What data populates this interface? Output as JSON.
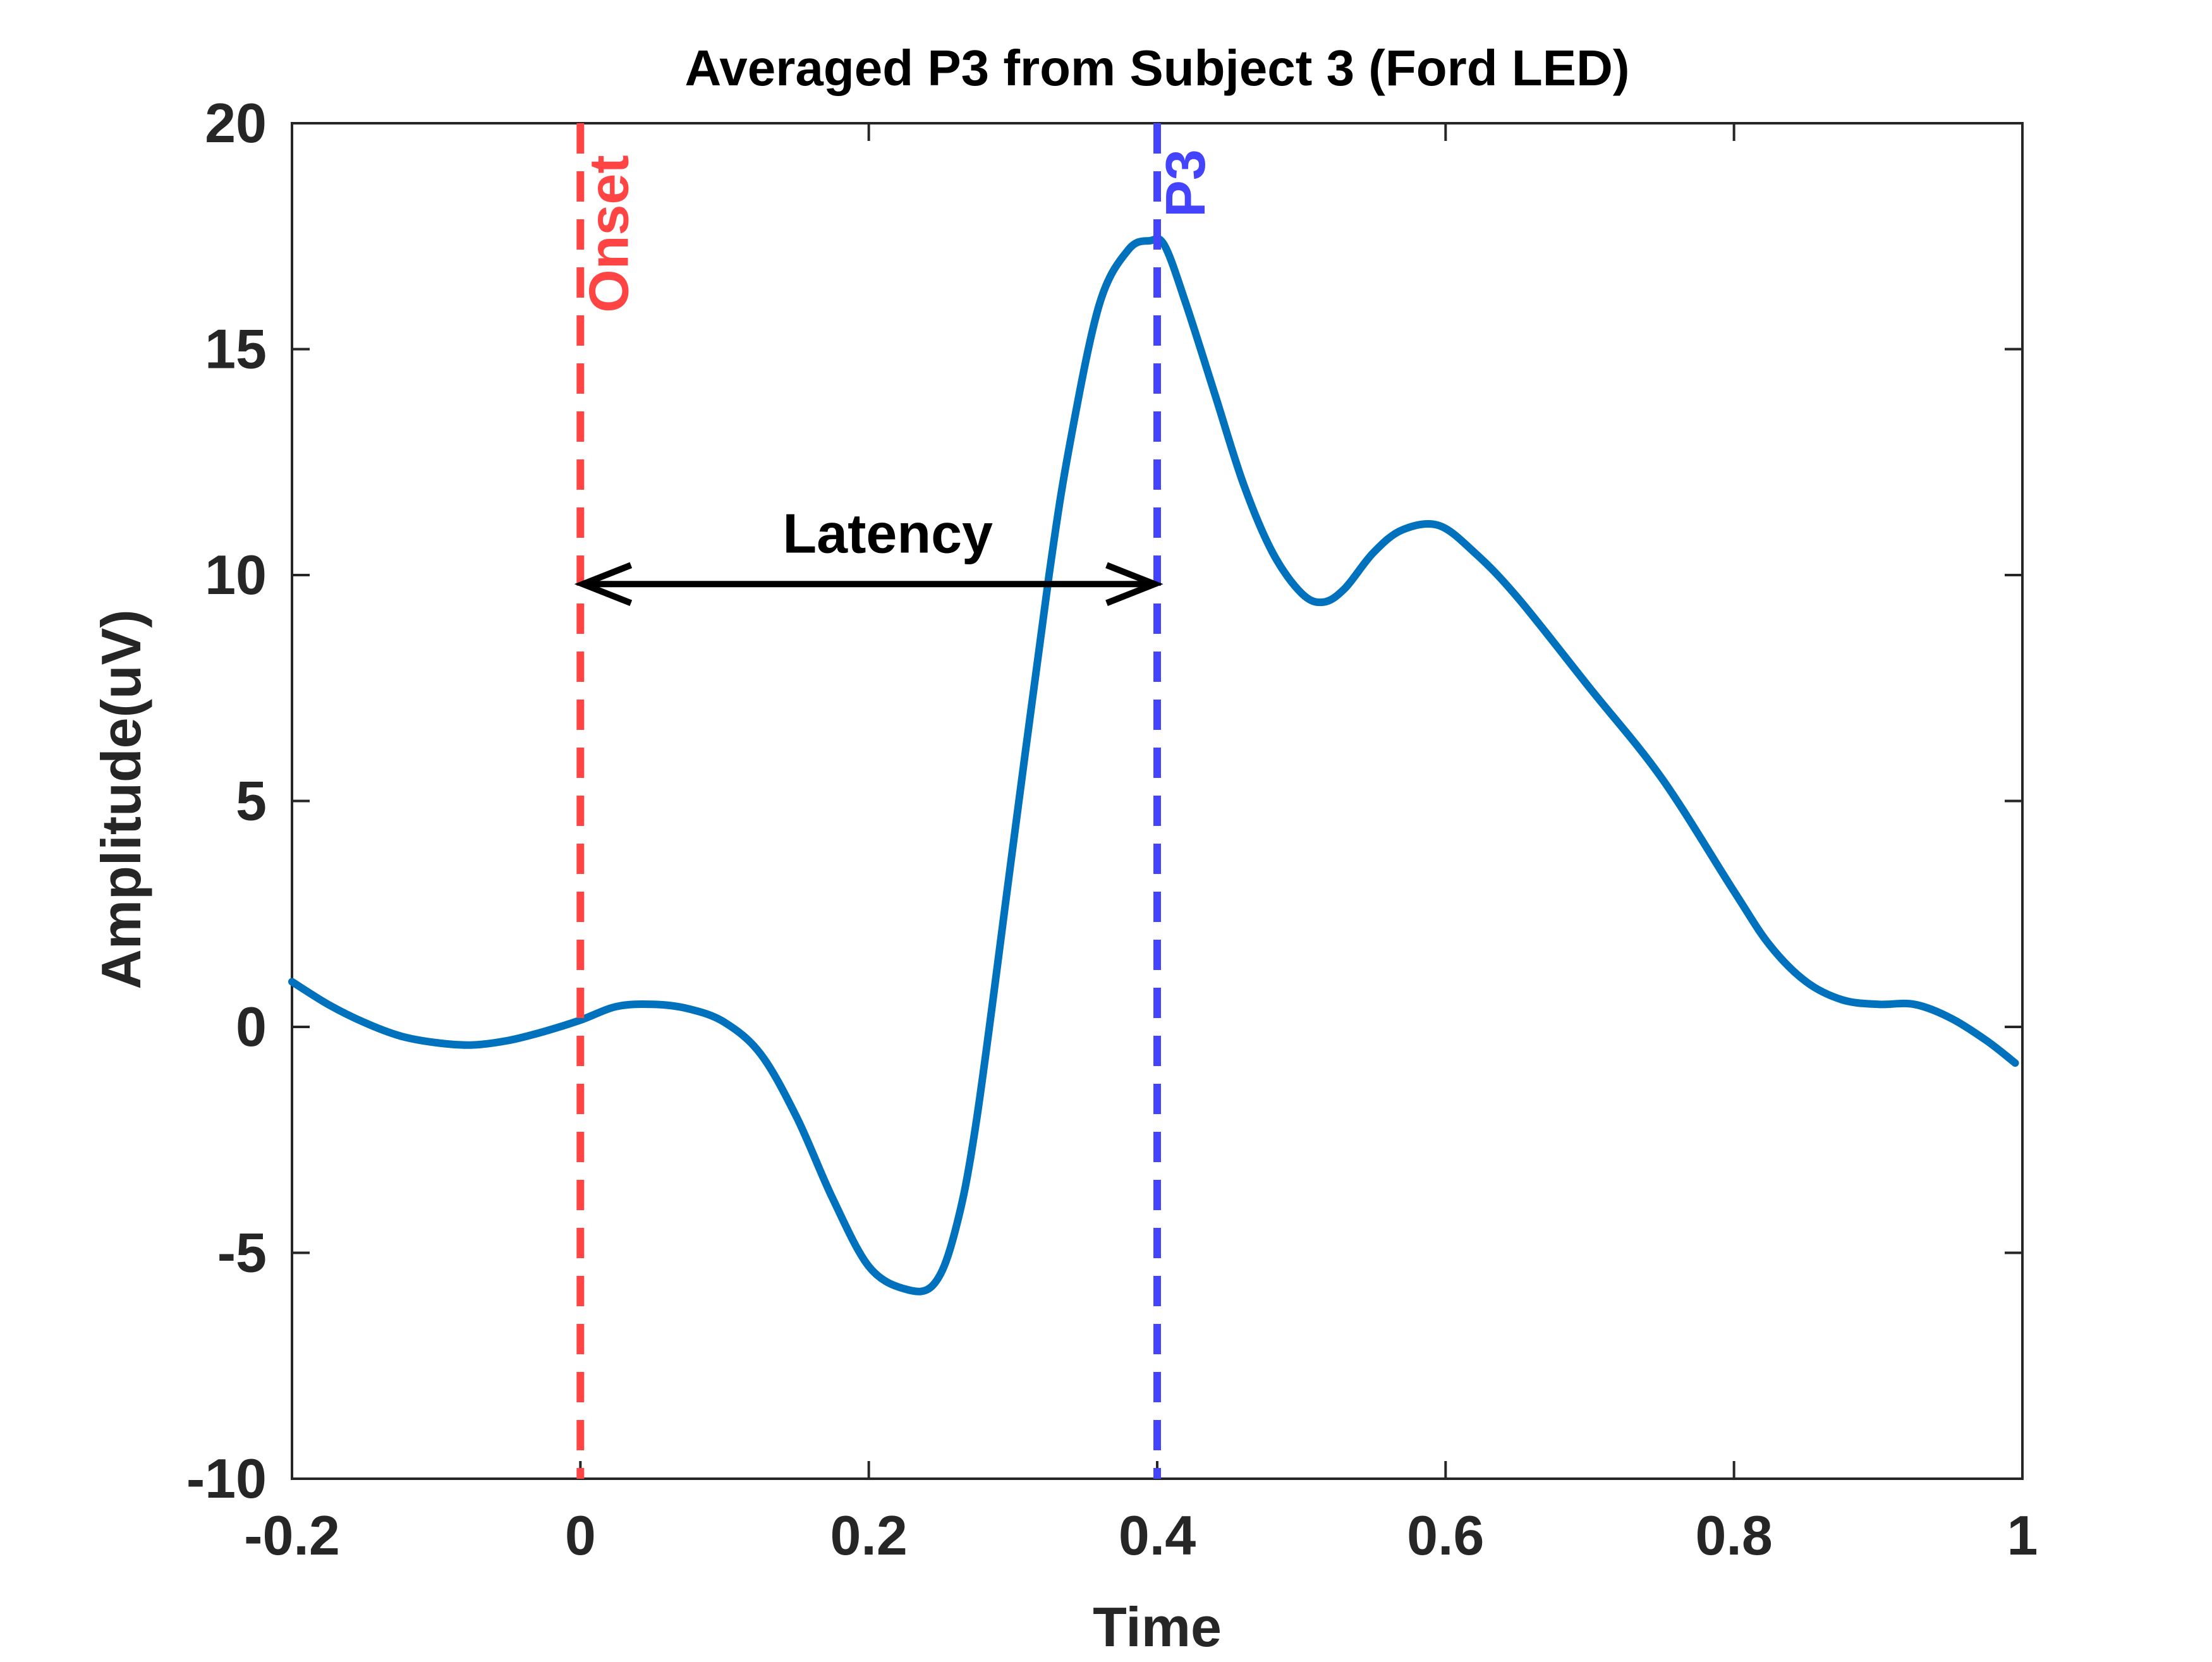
{
  "chart_data": {
    "type": "line",
    "title": "Averaged P3 from Subject 3 (Ford LED)",
    "xlabel": "Time",
    "ylabel": "Amplitude(uV)",
    "xlim": [
      -0.2,
      1.0
    ],
    "ylim": [
      -10,
      20
    ],
    "xticks": [
      -0.2,
      0,
      0.2,
      0.4,
      0.6,
      0.8,
      1.0
    ],
    "xtick_labels": [
      "-0.2",
      "0",
      "0.2",
      "0.4",
      "0.6",
      "0.8",
      "1"
    ],
    "yticks": [
      -10,
      -5,
      0,
      5,
      10,
      15,
      20
    ],
    "ytick_labels": [
      "-10",
      "-5",
      "0",
      "5",
      "10",
      "15",
      "20"
    ],
    "grid": false,
    "series": [
      {
        "name": "Averaged P3",
        "color": "#0072BD",
        "x": [
          -0.2,
          -0.175,
          -0.15,
          -0.125,
          -0.1,
          -0.075,
          -0.05,
          -0.025,
          0.0,
          0.025,
          0.05,
          0.075,
          0.1,
          0.125,
          0.15,
          0.175,
          0.2,
          0.225,
          0.245,
          0.26,
          0.275,
          0.3,
          0.325,
          0.34,
          0.36,
          0.38,
          0.395,
          0.405,
          0.42,
          0.44,
          0.46,
          0.48,
          0.5,
          0.515,
          0.53,
          0.55,
          0.57,
          0.595,
          0.62,
          0.65,
          0.7,
          0.75,
          0.8,
          0.825,
          0.85,
          0.875,
          0.9,
          0.925,
          0.95,
          0.975,
          0.995
        ],
        "y": [
          1.0,
          0.5,
          0.1,
          -0.2,
          -0.35,
          -0.4,
          -0.3,
          -0.1,
          0.15,
          0.45,
          0.5,
          0.4,
          0.1,
          -0.6,
          -2.0,
          -3.8,
          -5.3,
          -5.8,
          -5.7,
          -4.5,
          -2.0,
          4.0,
          10.0,
          13.0,
          16.0,
          17.2,
          17.4,
          17.3,
          16.0,
          14.0,
          12.0,
          10.5,
          9.6,
          9.4,
          9.7,
          10.5,
          11.0,
          11.1,
          10.5,
          9.5,
          7.5,
          5.5,
          3.0,
          1.8,
          1.0,
          0.6,
          0.5,
          0.5,
          0.2,
          -0.3,
          -0.8
        ]
      }
    ],
    "annotations": [
      {
        "label": "Onset",
        "type": "vline",
        "x": 0.0,
        "color": "#ff4444"
      },
      {
        "label": "P3",
        "type": "vline",
        "x": 0.4,
        "color": "#4444ff"
      },
      {
        "label": "Latency",
        "type": "double-arrow",
        "x_start": 0.0,
        "x_end": 0.4,
        "y": 9.8,
        "color": "#000000"
      }
    ]
  }
}
